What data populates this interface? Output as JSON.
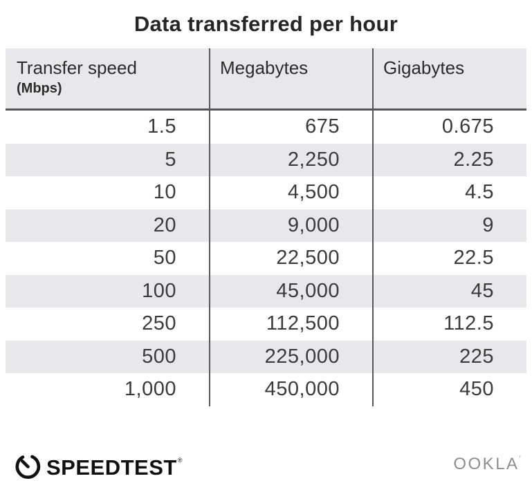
{
  "title": "Data transferred per hour",
  "table": {
    "columns": [
      {
        "label": "Transfer speed",
        "sublabel": "(Mbps)"
      },
      {
        "label": "Megabytes"
      },
      {
        "label": "Gigabytes"
      }
    ],
    "rows": [
      [
        "1.5",
        "675",
        "0.675"
      ],
      [
        "5",
        "2,250",
        "2.25"
      ],
      [
        "10",
        "4,500",
        "4.5"
      ],
      [
        "20",
        "9,000",
        "9"
      ],
      [
        "50",
        "22,500",
        "22.5"
      ],
      [
        "100",
        "45,000",
        "45"
      ],
      [
        "250",
        "112,500",
        "112.5"
      ],
      [
        "500",
        "225,000",
        "225"
      ],
      [
        "1,000",
        "450,000",
        "450"
      ]
    ]
  },
  "chart_data": {
    "type": "table",
    "title": "Data transferred per hour",
    "columns": [
      "Transfer speed (Mbps)",
      "Megabytes",
      "Gigabytes"
    ],
    "transfer_speed_mbps": [
      1.5,
      5,
      10,
      20,
      50,
      100,
      250,
      500,
      1000
    ],
    "megabytes_per_hour": [
      675,
      2250,
      4500,
      9000,
      22500,
      45000,
      112500,
      225000,
      450000
    ],
    "gigabytes_per_hour": [
      0.675,
      2.25,
      4.5,
      9,
      22.5,
      45,
      112.5,
      225,
      450
    ],
    "layout_hints": {
      "striped_rows": true,
      "column_dividers": true,
      "values_right_aligned": true
    }
  },
  "footer": {
    "speedtest_label": "SPEEDTEST",
    "speedtest_reg_mark": "®",
    "ookla_label": "OOKLA",
    "ookla_mark": "’"
  },
  "colors": {
    "header_bg": "#e8e8ec",
    "row_alt_bg": "#e8e8ec",
    "divider": "#565656",
    "title_text": "#262626",
    "number_text": "#3a3a3a",
    "speedtest_black": "#101010",
    "ookla_gray": "#8e8e8e"
  }
}
